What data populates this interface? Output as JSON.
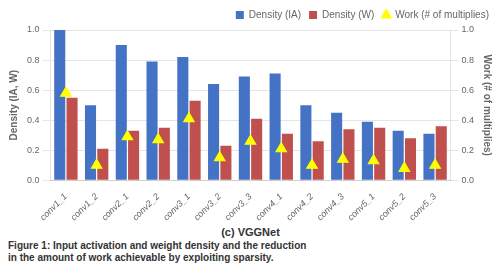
{
  "chart_data": {
    "type": "bar",
    "subtitle": "(c) VGGNet",
    "caption": "Figure 1: Input activation and weight density and the reduction\nin the amount of work achievable by exploiting sparsity.",
    "categories": [
      "conv1_1",
      "conv1_2",
      "conv2_1",
      "conv2_2",
      "conv3_1",
      "conv3_2",
      "conv3_3",
      "conv4_1",
      "conv4_2",
      "conv4_3",
      "conv5_1",
      "conv5_2",
      "conv5_3"
    ],
    "series": [
      {
        "name": "Density (IA)",
        "color": "#4472c4",
        "values": [
          1.0,
          0.5,
          0.9,
          0.79,
          0.82,
          0.64,
          0.69,
          0.71,
          0.5,
          0.45,
          0.39,
          0.33,
          0.31
        ]
      },
      {
        "name": "Density (W)",
        "color": "#c0504d",
        "values": [
          0.55,
          0.21,
          0.33,
          0.35,
          0.53,
          0.23,
          0.41,
          0.31,
          0.26,
          0.34,
          0.35,
          0.28,
          0.36
        ]
      },
      {
        "name": "Work (# of multiplies)",
        "type": "line",
        "marker": "triangle",
        "line_style": "none",
        "color": "#ffff00",
        "axis": "y2",
        "values": [
          0.58,
          0.1,
          0.29,
          0.27,
          0.41,
          0.15,
          0.26,
          0.21,
          0.1,
          0.14,
          0.13,
          0.08,
          0.1
        ]
      }
    ],
    "ylabel": "Density (IA, W)",
    "y2label": "Work (# of multiplies)",
    "ylim": [
      0,
      1
    ],
    "yticks": [
      {
        "value": 0,
        "label": "0.0"
      },
      0.2,
      0.4,
      0.6,
      0.8,
      {
        "value": 1.0,
        "label": "1.0"
      }
    ],
    "y2lim": [
      0,
      1
    ],
    "y2ticks": [
      {
        "value": 0,
        "label": "0.0"
      },
      0.2,
      0.4,
      0.6,
      0.8,
      {
        "value": 1.0,
        "label": "1.0"
      }
    ],
    "grid": true,
    "legend": "upper right"
  }
}
